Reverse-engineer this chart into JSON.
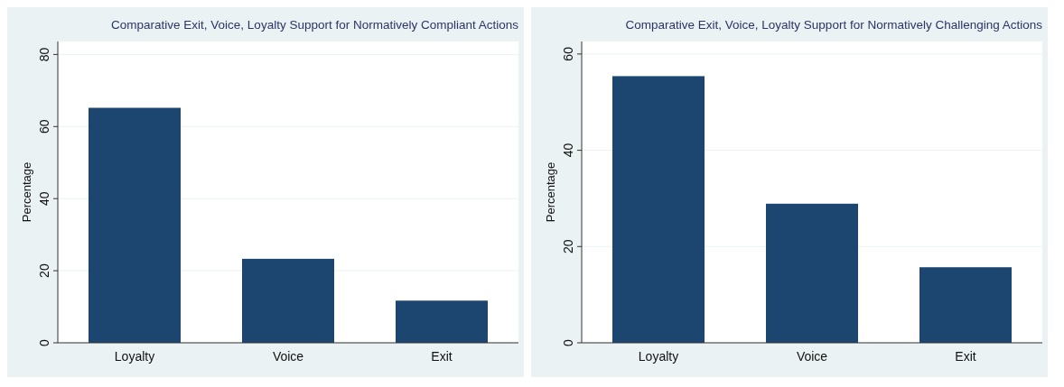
{
  "chart_data": [
    {
      "type": "bar",
      "title": "Comparative Exit, Voice, Loyalty Support for Normatively Compliant Actions",
      "ylabel": "Percentage",
      "categories": [
        "Loyalty",
        "Voice",
        "Exit"
      ],
      "values": [
        65.2,
        23.3,
        11.7
      ],
      "color": "#1c4670",
      "ylim": [
        0,
        83.6
      ],
      "yticks": [
        0,
        20,
        40,
        60,
        80
      ],
      "grid": "y"
    },
    {
      "type": "bar",
      "title": "Comparative Exit, Voice, Loyalty Support for Normatively Challenging Actions",
      "ylabel": "Percentage",
      "categories": [
        "Loyalty",
        "Voice",
        "Exit"
      ],
      "values": [
        55.4,
        28.9,
        15.7
      ],
      "color": "#1c4670",
      "ylim": [
        0,
        62.6
      ],
      "yticks": [
        0,
        20,
        40,
        60
      ],
      "grid": "y"
    }
  ]
}
